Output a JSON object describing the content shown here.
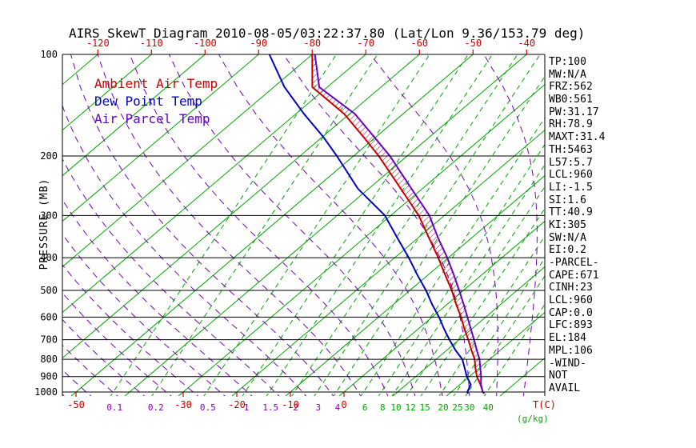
{
  "title": "AIRS SkewT Diagram 2010-08-05/03:22:37.80 (Lat/Lon 9.36/153.79 deg)",
  "legend": [
    {
      "label": "Ambient Air Temp",
      "color": "#CC0000"
    },
    {
      "label": "Dew Point Temp",
      "color": "#0000C8"
    },
    {
      "label": "Air Parcel Temp",
      "color": "#6600CC"
    }
  ],
  "colors": {
    "isotherm": "#00A500",
    "mixing_line": "#00A500",
    "mixing_label_low": "#8800BB",
    "mixing_label_high": "#00A500",
    "adiabat": "#7700BB",
    "temp_tick": "#CC0000",
    "axis": "#000000",
    "hatch": "#AA0033"
  },
  "stats": [
    "TP:100",
    "MW:N/A",
    "FRZ:562",
    "WB0:561",
    "PW:31.17",
    "RH:78.9",
    "MAXT:31.4",
    "TH:5463",
    "L57:5.7",
    "LCL:960",
    "LI:-1.5",
    "SI:1.6",
    "TT:40.9",
    "KI:305",
    "SW:N/A",
    "EI:0.2",
    "-PARCEL-",
    "CAPE:671",
    "CINH:23",
    "LCL:960",
    "CAP:0.0",
    "LFC:893",
    "EL:184",
    "MPL:106",
    "-WIND-",
    "NOT",
    "AVAIL"
  ],
  "chart_data": {
    "type": "line",
    "variant": "skewt-logp",
    "ylabel": "PRESSURE (MB)",
    "xlabel": "T(C)",
    "x2label": "(g/kg)",
    "pressure_axis": {
      "min": 100,
      "max": 1000,
      "scale": "log"
    },
    "pressure_ticks": [
      100,
      200,
      300,
      400,
      500,
      600,
      700,
      800,
      900,
      1000
    ],
    "top_temp_ticks": [
      -120,
      -110,
      -100,
      -90,
      -80,
      -70,
      -60,
      -50,
      -40
    ],
    "bottom_temp_ticks": [
      -50,
      -30,
      -20,
      -10,
      0
    ],
    "isotherms": {
      "min": -120,
      "max": 40,
      "step": 10
    },
    "moist_adiabats": {
      "min": -50,
      "max": 45,
      "step": 5
    },
    "mixing_ratio_lines": {
      "values": [
        0.1,
        0.2,
        0.5,
        1,
        1.5,
        2,
        3,
        4,
        6,
        8,
        10,
        12,
        15,
        20,
        25,
        30,
        40
      ],
      "t_at_1000mb": [
        -42.5,
        -34.8,
        -25.1,
        -17.9,
        -13.4,
        -8.7,
        -4.5,
        -0.9,
        4.2,
        7.5,
        10,
        12.7,
        15.4,
        18.8,
        21.5,
        23.7,
        27.2
      ],
      "delta_t_to_top": -33,
      "purple_label_max": 4
    },
    "series": [
      {
        "name": "Ambient Air Temp",
        "color": "#CC0000",
        "points": [
          [
            1010,
            26.5
          ],
          [
            1000,
            25.9
          ],
          [
            950,
            23.8
          ],
          [
            900,
            21.4
          ],
          [
            850,
            19.3
          ],
          [
            800,
            17.2
          ],
          [
            750,
            14.5
          ],
          [
            700,
            11.7
          ],
          [
            650,
            8.6
          ],
          [
            600,
            5.4
          ],
          [
            550,
            1.7
          ],
          [
            500,
            -2.2
          ],
          [
            450,
            -6.8
          ],
          [
            400,
            -11.9
          ],
          [
            350,
            -17.9
          ],
          [
            300,
            -24.8
          ],
          [
            250,
            -34
          ],
          [
            200,
            -45.3
          ],
          [
            175,
            -52.5
          ],
          [
            150,
            -61
          ],
          [
            125,
            -72.8
          ],
          [
            100,
            -80
          ]
        ]
      },
      {
        "name": "Dew Point Temp",
        "color": "#0000C8",
        "points": [
          [
            1010,
            23.5
          ],
          [
            1000,
            23
          ],
          [
            950,
            22
          ],
          [
            900,
            19.5
          ],
          [
            850,
            17.3
          ],
          [
            800,
            14.9
          ],
          [
            750,
            11.5
          ],
          [
            700,
            8.2
          ],
          [
            650,
            4.8
          ],
          [
            600,
            1.3
          ],
          [
            550,
            -2.8
          ],
          [
            500,
            -7
          ],
          [
            450,
            -12
          ],
          [
            400,
            -17.4
          ],
          [
            350,
            -23.8
          ],
          [
            300,
            -31.1
          ],
          [
            250,
            -42
          ],
          [
            200,
            -53.1
          ],
          [
            175,
            -60
          ],
          [
            150,
            -68.5
          ],
          [
            125,
            -78
          ],
          [
            100,
            -88
          ]
        ]
      },
      {
        "name": "Air Parcel Temp",
        "color": "#6600CC",
        "points": [
          [
            1010,
            26.5
          ],
          [
            1000,
            25.9
          ],
          [
            950,
            23.9
          ],
          [
            900,
            22.2
          ],
          [
            850,
            20.2
          ],
          [
            800,
            18.1
          ],
          [
            750,
            15.5
          ],
          [
            700,
            12.8
          ],
          [
            650,
            9.8
          ],
          [
            600,
            6.6
          ],
          [
            550,
            3.1
          ],
          [
            500,
            -0.8
          ],
          [
            450,
            -5.2
          ],
          [
            400,
            -10.2
          ],
          [
            350,
            -16.2
          ],
          [
            300,
            -22.8
          ],
          [
            250,
            -32
          ],
          [
            200,
            -43.2
          ],
          [
            175,
            -50.5
          ],
          [
            150,
            -59
          ],
          [
            125,
            -71.5
          ],
          [
            100,
            -79.5
          ]
        ]
      }
    ],
    "cape_hatch": {
      "between": [
        "Air Parcel Temp",
        "Ambient Air Temp"
      ],
      "from_pressure": 950,
      "to_pressure": 100
    }
  }
}
